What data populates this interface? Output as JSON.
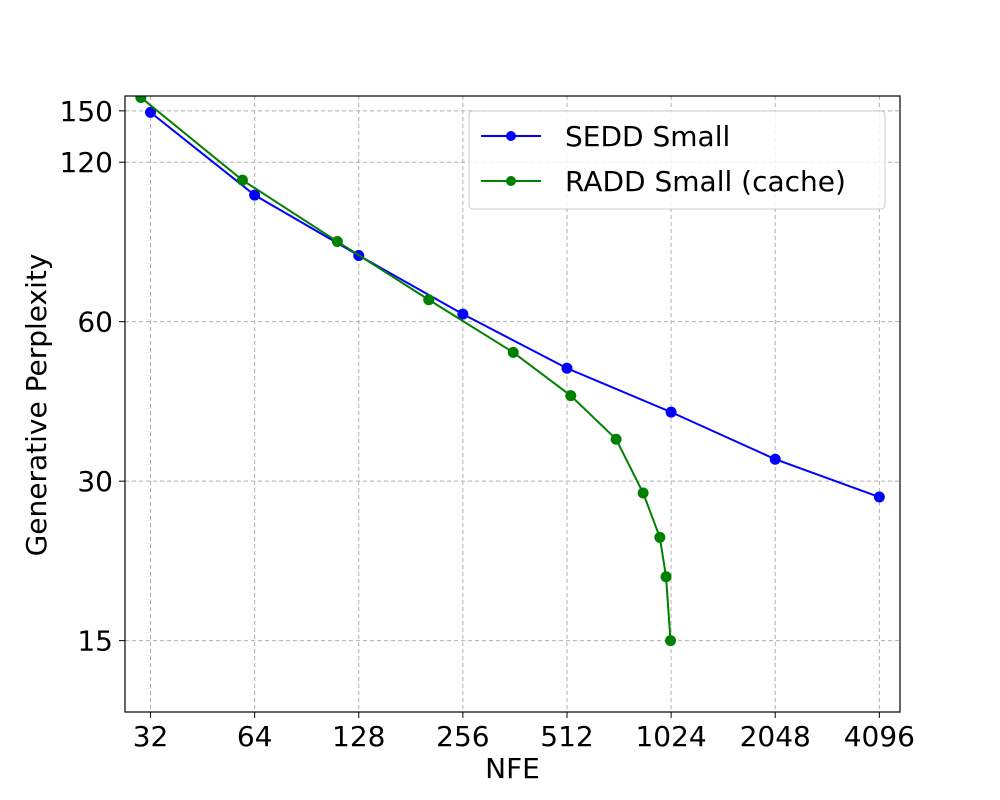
{
  "chart_data": {
    "type": "line",
    "title": "",
    "xlabel": "NFE",
    "ylabel": "Generative Perplexity",
    "x_scale": "log2",
    "y_scale": "log",
    "xlim": [
      27,
      4700
    ],
    "ylim": [
      11,
      160
    ],
    "x_ticks": [
      32,
      64,
      128,
      256,
      512,
      1024,
      2048,
      4096
    ],
    "x_tick_labels": [
      "32",
      "64",
      "128",
      "256",
      "512",
      "1024",
      "2048",
      "4096"
    ],
    "y_ticks": [
      15,
      30,
      60,
      120,
      150
    ],
    "y_tick_labels": [
      "15",
      "30",
      "60",
      "120",
      "150"
    ],
    "grid": true,
    "legend_position": "top-right",
    "series": [
      {
        "name": "SEDD Small",
        "color": "#0000ff",
        "marker": "circle",
        "x": [
          32,
          64,
          128,
          256,
          512,
          1024,
          2048,
          4096
        ],
        "y": [
          149,
          104,
          80,
          62,
          49,
          40.5,
          33,
          28
        ]
      },
      {
        "name": "RADD Small (cache)",
        "color": "#008000",
        "marker": "circle",
        "x": [
          30,
          59,
          111,
          204,
          358,
          525,
          710,
          850,
          950,
          990,
          1020
        ],
        "y": [
          159,
          111,
          85,
          66,
          52.5,
          43.5,
          36,
          28.5,
          23.5,
          19.8,
          15
        ]
      }
    ]
  }
}
